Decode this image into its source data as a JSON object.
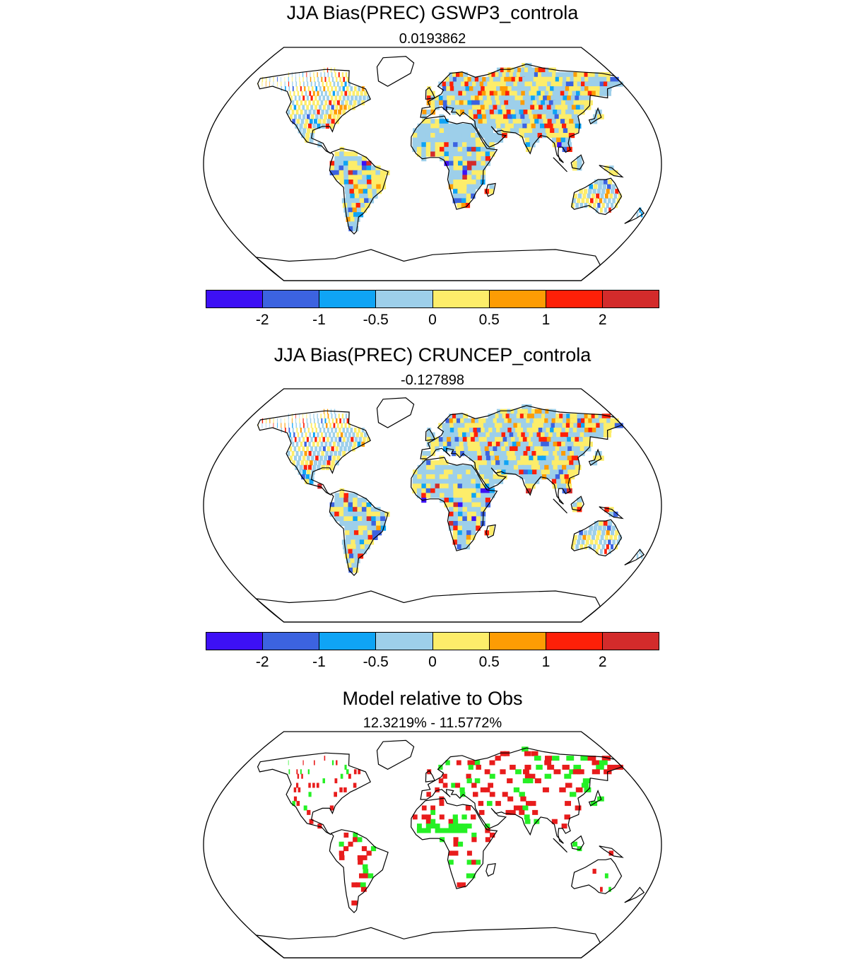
{
  "panels": [
    {
      "title": "JJA Bias(PREC) GSWP3_controla",
      "subtitle": "0.0193862",
      "kind": "bias"
    },
    {
      "title": "JJA Bias(PREC) CRUNCEP_controla",
      "subtitle": "-0.127898",
      "kind": "bias"
    },
    {
      "title": "Model relative to Obs",
      "subtitle": "12.3219% - 11.5772%",
      "kind": "relative"
    }
  ],
  "colorbar": {
    "colors": [
      "#3d10f5",
      "#3c63e0",
      "#0fa4f5",
      "#9dcfea",
      "#fded6a",
      "#fd9c04",
      "#fd2008",
      "#d32b2b"
    ],
    "labels": [
      "-2",
      "-1",
      "-0.5",
      "0",
      "0.5",
      "1",
      "2"
    ]
  },
  "relative_colors": {
    "better": "#25f025",
    "worse": "#e81c1c"
  }
}
